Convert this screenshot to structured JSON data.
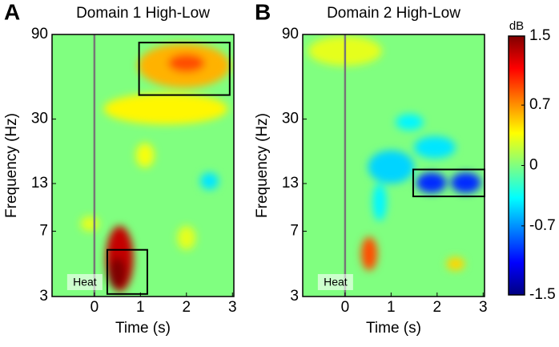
{
  "chart_data": [
    {
      "type": "heatmap",
      "panel": "A",
      "title": "Domain 1 High-Low",
      "xlabel": "Time (s)",
      "ylabel": "Frequency (Hz)",
      "xlim": [
        -0.92,
        3.03
      ],
      "xticks": [
        0,
        1,
        2,
        3
      ],
      "ylim": [
        3,
        90
      ],
      "yticks": [
        3,
        7,
        13,
        30,
        90
      ],
      "yscale": "log",
      "event": {
        "x": 0,
        "label": "Heat"
      },
      "boxes": [
        {
          "t": [
            0.97,
            2.94
          ],
          "f": [
            41,
            81
          ]
        },
        {
          "t": [
            0.28,
            1.15
          ],
          "f": [
            3.1,
            5.5
          ]
        }
      ],
      "regions": [
        {
          "t": [
            0.25,
            0.85
          ],
          "f": [
            3.2,
            7.5
          ],
          "value": 1.3
        },
        {
          "t": [
            0.3,
            0.7
          ],
          "f": [
            3.3,
            5
          ],
          "value": 1.5
        },
        {
          "t": [
            0.95,
            2.95
          ],
          "f": [
            45,
            80
          ],
          "value": 0.6
        },
        {
          "t": [
            1.6,
            2.4
          ],
          "f": [
            55,
            70
          ],
          "value": 0.9
        },
        {
          "t": [
            0.2,
            2.9
          ],
          "f": [
            28,
            42
          ],
          "value": 0.4
        },
        {
          "t": [
            0.9,
            1.3
          ],
          "f": [
            16,
            22
          ],
          "value": 0.35
        },
        {
          "t": [
            1.8,
            2.2
          ],
          "f": [
            5.5,
            7.5
          ],
          "value": 0.3
        },
        {
          "t": [
            2.3,
            2.7
          ],
          "f": [
            12,
            15
          ],
          "value": -0.45
        },
        {
          "t": [
            -0.3,
            0.1
          ],
          "f": [
            7,
            8.5
          ],
          "value": 0.3
        }
      ]
    },
    {
      "type": "heatmap",
      "panel": "B",
      "title": "Domain 2 High-Low",
      "xlabel": "Time (s)",
      "ylabel": "Frequency (Hz)",
      "xlim": [
        -0.92,
        3.03
      ],
      "xticks": [
        0,
        1,
        2,
        3
      ],
      "ylim": [
        3,
        90
      ],
      "yticks": [
        3,
        7,
        13,
        30,
        90
      ],
      "yscale": "log",
      "event": {
        "x": 0,
        "label": "Heat"
      },
      "boxes": [
        {
          "t": [
            1.48,
            3.03
          ],
          "f": [
            11,
            15.6
          ]
        }
      ],
      "regions": [
        {
          "t": [
            1.55,
            2.2
          ],
          "f": [
            11.5,
            15
          ],
          "value": -1.0
        },
        {
          "t": [
            2.3,
            2.95
          ],
          "f": [
            11.5,
            15
          ],
          "value": -1.0
        },
        {
          "t": [
            0.5,
            1.5
          ],
          "f": [
            13,
            20
          ],
          "value": -0.5
        },
        {
          "t": [
            1.5,
            2.4
          ],
          "f": [
            18,
            24
          ],
          "value": -0.45
        },
        {
          "t": [
            1.1,
            1.7
          ],
          "f": [
            26,
            32
          ],
          "value": -0.4
        },
        {
          "t": [
            0.35,
            0.7
          ],
          "f": [
            4.2,
            6.5
          ],
          "value": 0.9
        },
        {
          "t": [
            2.2,
            2.6
          ],
          "f": [
            4.2,
            5
          ],
          "value": 0.5
        },
        {
          "t": [
            0.6,
            0.9
          ],
          "f": [
            8,
            13
          ],
          "value": -0.4
        },
        {
          "t": [
            -0.8,
            0.8
          ],
          "f": [
            60,
            88
          ],
          "value": 0.3
        }
      ]
    },
    {
      "type": "colorbar",
      "label": "dB",
      "clim": [
        -1.5,
        1.5
      ],
      "ticks": [
        1.5,
        0.7,
        0,
        -0.7,
        -1.5
      ]
    }
  ]
}
